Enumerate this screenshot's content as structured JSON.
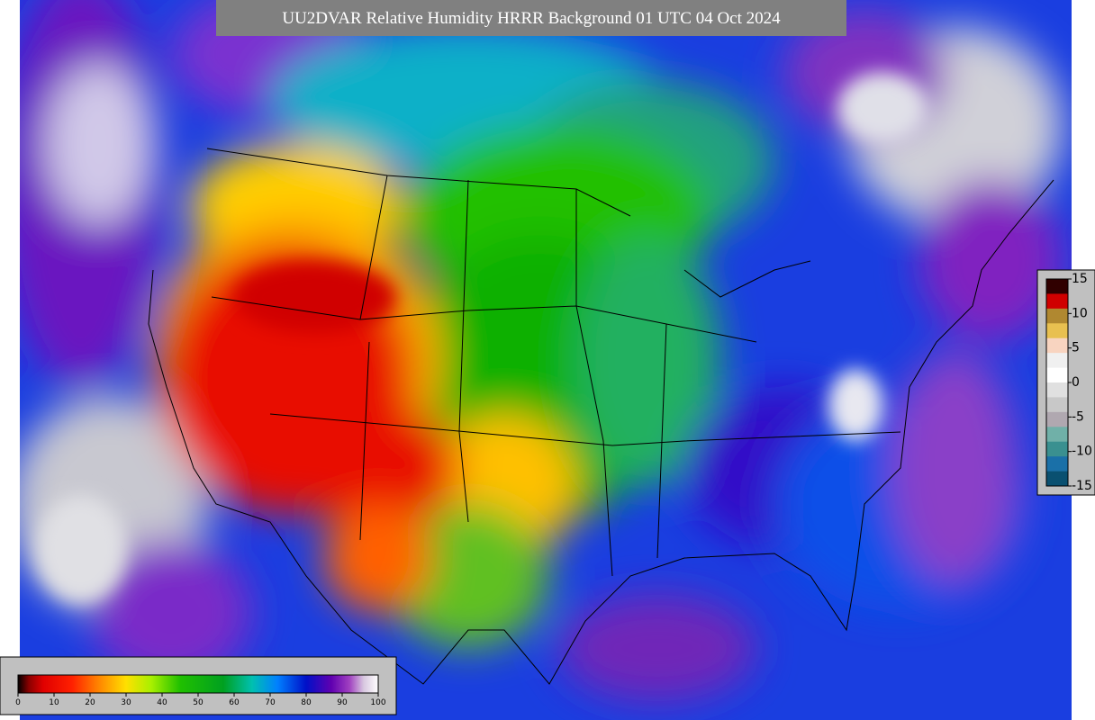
{
  "title": "UU2DVAR Relative Humidity HRRR Background  01 UTC 04 Oct 2024",
  "rh_colorbar": {
    "ticks": [
      0,
      10,
      20,
      30,
      40,
      50,
      60,
      70,
      80,
      90,
      100
    ]
  },
  "diff_colorbar": {
    "ticks": [
      15,
      10,
      5,
      0,
      -5,
      -10,
      -15
    ]
  }
}
